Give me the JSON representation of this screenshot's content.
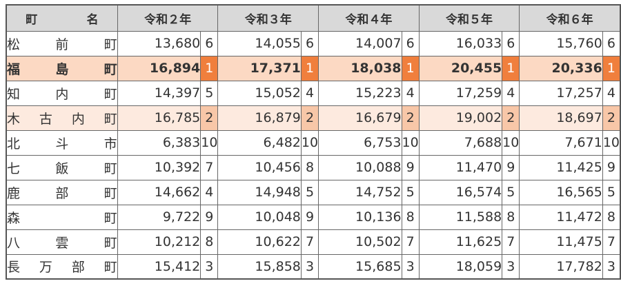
{
  "header": {
    "town": "町　名",
    "years": [
      "令和２年",
      "令和３年",
      "令和４年",
      "令和５年",
      "令和６年"
    ]
  },
  "rows": [
    {
      "town": "松前町",
      "cells": [
        [
          "13,680",
          "6"
        ],
        [
          "14,055",
          "6"
        ],
        [
          "14,007",
          "6"
        ],
        [
          "16,033",
          "6"
        ],
        [
          "15,760",
          "6"
        ]
      ]
    },
    {
      "town": "福島町",
      "cells": [
        [
          "16,894",
          "1"
        ],
        [
          "17,371",
          "1"
        ],
        [
          "18,038",
          "1"
        ],
        [
          "20,455",
          "1"
        ],
        [
          "20,336",
          "1"
        ]
      ]
    },
    {
      "town": "知内町",
      "cells": [
        [
          "14,397",
          "5"
        ],
        [
          "15,052",
          "4"
        ],
        [
          "15,223",
          "4"
        ],
        [
          "17,259",
          "4"
        ],
        [
          "17,257",
          "4"
        ]
      ]
    },
    {
      "town": "木古内町",
      "cells": [
        [
          "16,785",
          "2"
        ],
        [
          "16,879",
          "2"
        ],
        [
          "16,679",
          "2"
        ],
        [
          "19,002",
          "2"
        ],
        [
          "18,697",
          "2"
        ]
      ]
    },
    {
      "town": "北斗市",
      "cells": [
        [
          "6,383",
          "10"
        ],
        [
          "6,482",
          "10"
        ],
        [
          "6,753",
          "10"
        ],
        [
          "7,688",
          "10"
        ],
        [
          "7,671",
          "10"
        ]
      ]
    },
    {
      "town": "七飯町",
      "cells": [
        [
          "10,392",
          "7"
        ],
        [
          "10,456",
          "8"
        ],
        [
          "10,088",
          "9"
        ],
        [
          "11,470",
          "9"
        ],
        [
          "11,425",
          "9"
        ]
      ]
    },
    {
      "town": "鹿部町",
      "cells": [
        [
          "14,662",
          "4"
        ],
        [
          "14,948",
          "5"
        ],
        [
          "14,752",
          "5"
        ],
        [
          "16,574",
          "5"
        ],
        [
          "16,565",
          "5"
        ]
      ]
    },
    {
      "town": "森町",
      "cells": [
        [
          "9,722",
          "9"
        ],
        [
          "10,048",
          "9"
        ],
        [
          "10,136",
          "8"
        ],
        [
          "11,588",
          "8"
        ],
        [
          "11,472",
          "8"
        ]
      ]
    },
    {
      "town": "八雲町",
      "cells": [
        [
          "10,212",
          "8"
        ],
        [
          "10,622",
          "7"
        ],
        [
          "10,502",
          "7"
        ],
        [
          "11,625",
          "7"
        ],
        [
          "11,475",
          "7"
        ]
      ]
    },
    {
      "town": "長万部町",
      "cells": [
        [
          "15,412",
          "3"
        ],
        [
          "15,858",
          "3"
        ],
        [
          "15,685",
          "3"
        ],
        [
          "18,059",
          "3"
        ],
        [
          "17,782",
          "3"
        ]
      ]
    }
  ],
  "colors": {
    "header_bg": "#d9d9d9",
    "top_rank_bg": "#f07f3d",
    "top_row_bg": "#fcd9c3",
    "second_row_bg": "#fdeadf",
    "second_rank_bg": "#f8c7a8"
  }
}
